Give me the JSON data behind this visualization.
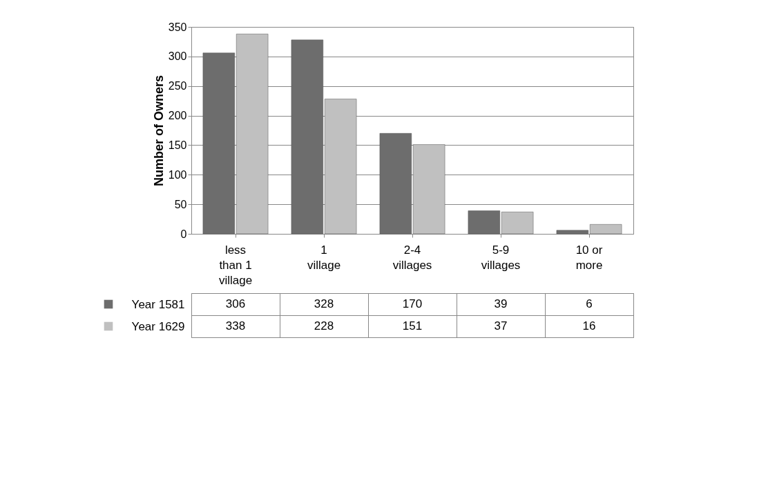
{
  "chart_data": {
    "type": "bar",
    "ylabel": "Number of Owners",
    "categories": [
      "less than 1 village",
      "1 village",
      "2-4 villages",
      "5-9 villages",
      "10 or more"
    ],
    "series": [
      {
        "name": "Year 1581",
        "color": "#6d6d6d",
        "values": [
          306,
          328,
          170,
          39,
          6
        ]
      },
      {
        "name": "Year 1629",
        "color": "#c0c0c0",
        "values": [
          338,
          228,
          151,
          37,
          16
        ]
      }
    ],
    "ylim": [
      0,
      350
    ],
    "yticks": [
      0,
      50,
      100,
      150,
      200,
      250,
      300,
      350
    ],
    "grid": "y",
    "legend": "bottom",
    "data_labels": true
  }
}
